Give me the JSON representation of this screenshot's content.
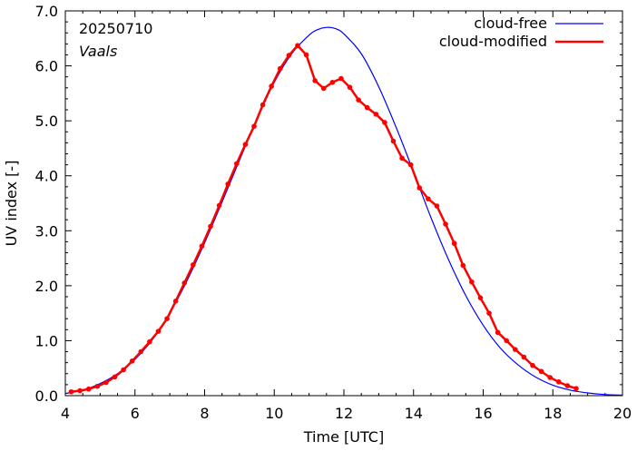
{
  "chart_data": {
    "type": "line",
    "xlabel": "Time  [UTC]",
    "ylabel": "UV index  [-]",
    "xlim": [
      4,
      20
    ],
    "ylim": [
      0,
      7
    ],
    "x_ticks": [
      4,
      6,
      8,
      10,
      12,
      14,
      16,
      18,
      20
    ],
    "x_tick_labels": [
      "4",
      "6",
      "8",
      "10",
      "12",
      "14",
      "16",
      "18",
      "20"
    ],
    "y_ticks": [
      0,
      1,
      2,
      3,
      4,
      5,
      6,
      7
    ],
    "y_tick_labels": [
      "0.0",
      "1.0",
      "2.0",
      "3.0",
      "4.0",
      "5.0",
      "6.0",
      "7.0"
    ],
    "grid": false,
    "legend_position": "top-right",
    "annotations": {
      "date": "20250710",
      "location": "Vaals"
    },
    "series": [
      {
        "name": "cloud-free",
        "color": "#0000ff",
        "markers": false,
        "x": [
          4.0,
          4.5,
          5.0,
          5.5,
          6.0,
          6.5,
          7.0,
          7.5,
          8.0,
          8.5,
          9.0,
          9.5,
          10.0,
          10.5,
          11.0,
          11.25,
          11.5,
          11.75,
          12.0,
          12.5,
          13.0,
          13.5,
          14.0,
          14.5,
          15.0,
          15.5,
          16.0,
          16.5,
          17.0,
          17.5,
          18.0,
          18.5,
          19.0,
          19.5,
          20.0
        ],
        "y": [
          0.04,
          0.1,
          0.22,
          0.4,
          0.66,
          1.02,
          1.5,
          2.1,
          2.78,
          3.52,
          4.28,
          5.02,
          5.7,
          6.22,
          6.56,
          6.66,
          6.7,
          6.68,
          6.58,
          6.22,
          5.62,
          4.88,
          4.07,
          3.24,
          2.48,
          1.82,
          1.28,
          0.86,
          0.56,
          0.34,
          0.19,
          0.1,
          0.05,
          0.02,
          0.01
        ]
      },
      {
        "name": "cloud-modified",
        "color": "#ff0000",
        "markers": true,
        "x": [
          4.17,
          4.42,
          4.67,
          4.92,
          5.17,
          5.42,
          5.67,
          5.92,
          6.17,
          6.42,
          6.67,
          6.92,
          7.17,
          7.42,
          7.67,
          7.92,
          8.17,
          8.42,
          8.67,
          8.92,
          9.17,
          9.42,
          9.67,
          9.92,
          10.17,
          10.42,
          10.67,
          10.92,
          11.17,
          11.42,
          11.67,
          11.92,
          12.17,
          12.42,
          12.67,
          12.92,
          13.17,
          13.42,
          13.67,
          13.92,
          14.17,
          14.42,
          14.67,
          14.92,
          15.17,
          15.42,
          15.67,
          15.92,
          16.17,
          16.42,
          16.67,
          16.92,
          17.17,
          17.42,
          17.67,
          17.92,
          18.17,
          18.42,
          18.67
        ],
        "y": [
          0.07,
          0.09,
          0.12,
          0.17,
          0.24,
          0.34,
          0.47,
          0.63,
          0.8,
          0.98,
          1.17,
          1.4,
          1.72,
          2.05,
          2.38,
          2.72,
          3.08,
          3.46,
          3.85,
          4.22,
          4.57,
          4.9,
          5.29,
          5.63,
          5.95,
          6.19,
          6.37,
          6.2,
          5.73,
          5.59,
          5.7,
          5.77,
          5.61,
          5.38,
          5.24,
          5.12,
          4.97,
          4.63,
          4.32,
          4.2,
          3.78,
          3.58,
          3.45,
          3.12,
          2.77,
          2.37,
          2.07,
          1.78,
          1.5,
          1.15,
          1.0,
          0.84,
          0.7,
          0.55,
          0.44,
          0.33,
          0.25,
          0.18,
          0.13
        ]
      }
    ]
  }
}
